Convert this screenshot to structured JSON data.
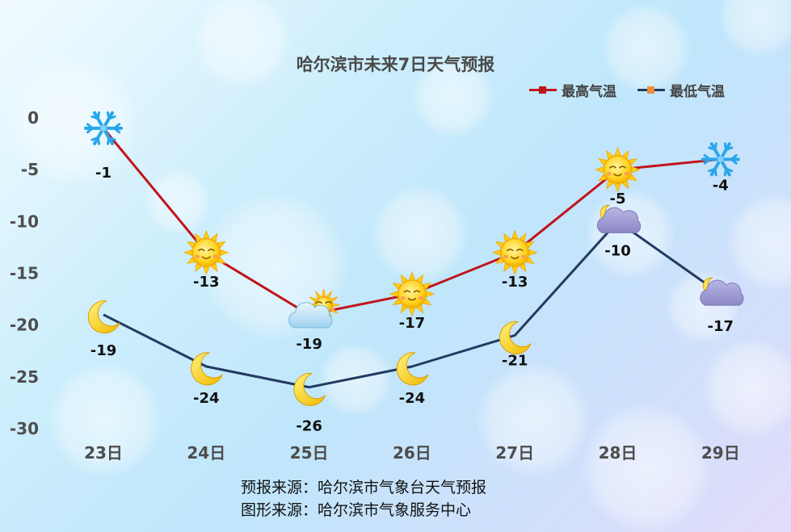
{
  "title": "哈尔滨市未来7日天气预报",
  "legend": [
    {
      "label": "最高气温",
      "color": "#c0141c"
    },
    {
      "label": "最低气温",
      "color": "#233a63",
      "marker_color": "#f08a3c"
    }
  ],
  "footer": {
    "line1": "预报来源：哈尔滨市气象台天气预报",
    "line2": "图形来源：哈尔滨市气象服务中心"
  },
  "chart_data": {
    "type": "line",
    "categories": [
      "23日",
      "24日",
      "25日",
      "26日",
      "27日",
      "28日",
      "29日"
    ],
    "ylim": [
      -30,
      0
    ],
    "yticks": [
      0,
      -5,
      -10,
      -15,
      -20,
      -25,
      -30
    ],
    "grid": false,
    "legend_position": "top-right",
    "series": [
      {
        "name": "最高气温",
        "values": [
          -1,
          -13,
          -19,
          -17,
          -13,
          -5,
          -4
        ],
        "color": "#c0141c",
        "icons": [
          "snow-icon",
          "sun-icon",
          "sun-cloud-icon",
          "sun-icon",
          "sun-icon",
          "sun-icon",
          "snow-icon"
        ]
      },
      {
        "name": "最低气温",
        "values": [
          -19,
          -24,
          -26,
          -24,
          -21,
          -10,
          -17
        ],
        "color": "#233a63",
        "icons": [
          "moon-icon",
          "moon-icon",
          "moon-icon",
          "moon-icon",
          "moon-icon",
          "moon-cloud-icon",
          "moon-cloud-icon"
        ]
      }
    ]
  }
}
